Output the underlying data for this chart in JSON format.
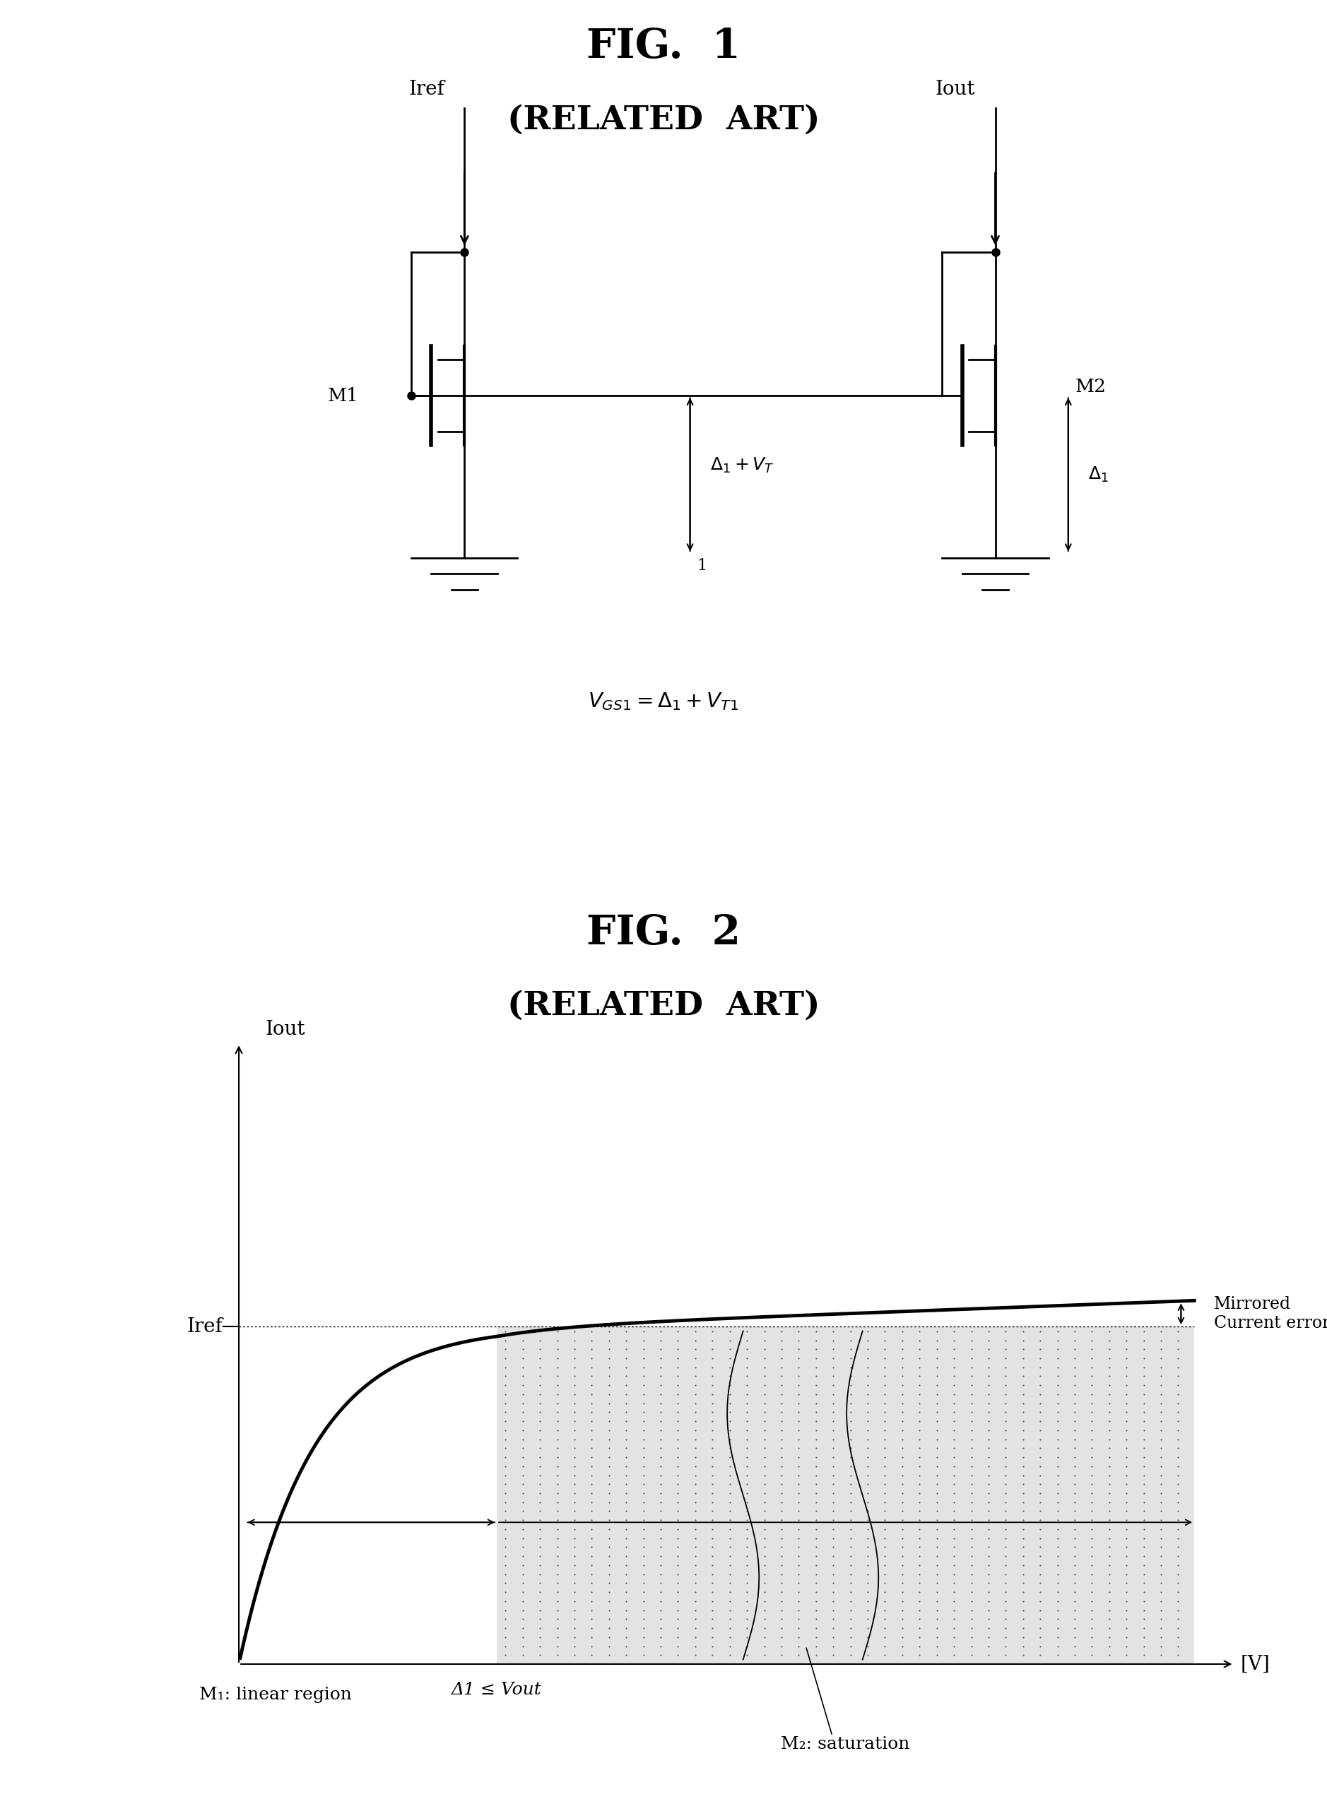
{
  "fig1_title": "FIG.  1",
  "fig1_subtitle": "(RELATED  ART)",
  "fig2_title": "FIG.  2",
  "fig2_subtitle": "(RELATED  ART)",
  "fig2_xlabel": "[V]",
  "fig2_ylabel": "Iout",
  "fig2_iref_label": "Iref",
  "fig2_mirrored_label": "Mirrored\nCurrent error",
  "fig2_m1_label": "M₁: linear region",
  "fig2_m2_label": "M₂: saturation",
  "fig2_delta_label": "Δ1 ≤ Vout",
  "circuit_iref_label": "Iref",
  "circuit_iout_label": "Iout",
  "circuit_m1_label": "M1",
  "circuit_m2_label": "M2",
  "circuit_delta_vt_label": "Δ1 + Vₜ",
  "circuit_delta_label": "Δ1",
  "background_color": "#ffffff",
  "line_color": "#000000",
  "curve_linewidth": 3.5,
  "axis_linewidth": 1.5
}
